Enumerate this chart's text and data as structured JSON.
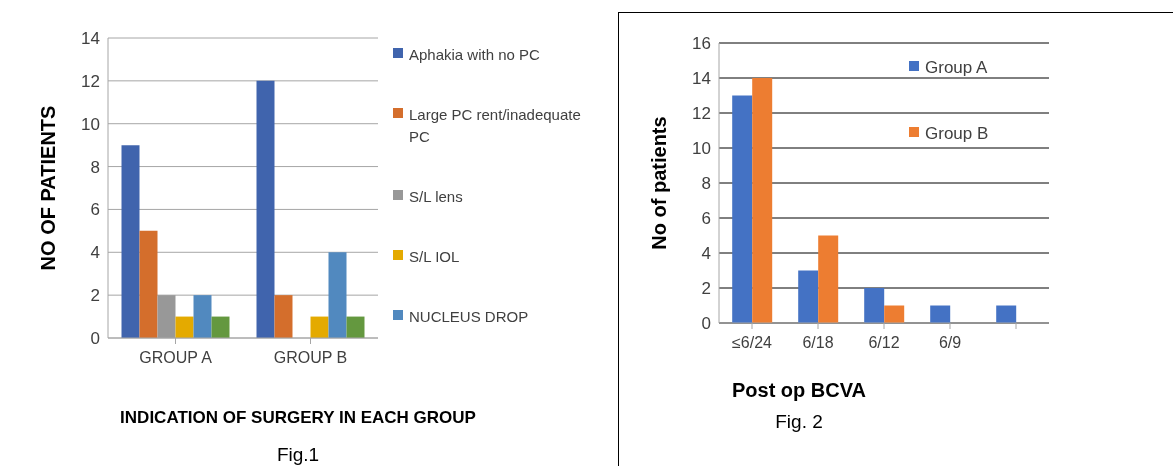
{
  "chart_data": [
    {
      "type": "bar",
      "title": "INDICATION OF SURGERY IN EACH GROUP",
      "ylabel": "NO OF  PATIENTS",
      "categories": [
        "GROUP A",
        "GROUP B"
      ],
      "series": [
        {
          "name": "Aphakia with no PC",
          "color": "#4064ad",
          "values": [
            9,
            12
          ]
        },
        {
          "name": "Large PC rent/inadequate PC",
          "color": "#d46e2c",
          "values": [
            5,
            2
          ]
        },
        {
          "name": "S/L lens",
          "color": "#989898",
          "values": [
            2,
            0
          ]
        },
        {
          "name": "S/L IOL",
          "color": "#e4aa00",
          "values": [
            1,
            1
          ]
        },
        {
          "name": "NUCLEUS DROP",
          "color": "#5189bf",
          "values": [
            2,
            4
          ]
        },
        {
          "color": "#64983f",
          "values": [
            1,
            1
          ]
        }
      ],
      "ylim": [
        0,
        14
      ],
      "yticks": [
        0,
        2,
        4,
        6,
        8,
        10,
        12,
        14
      ],
      "grid": "y",
      "legend": "right",
      "annotations": [
        "Fig.1"
      ]
    },
    {
      "type": "bar",
      "xlabel": "Post op BCVA",
      "ylabel": "No of patients",
      "categories": [
        "≤6/24",
        "6/18",
        "6/12",
        "6/9",
        null
      ],
      "series": [
        {
          "name": "Group A",
          "color": "#4472c4",
          "values": [
            13,
            3,
            2,
            1,
            1
          ]
        },
        {
          "name": "Group B",
          "color": "#ed7d31",
          "values": [
            14,
            5,
            1,
            null,
            null
          ]
        }
      ],
      "ylim": [
        0,
        16
      ],
      "yticks": [
        0,
        2,
        4,
        6,
        8,
        10,
        12,
        14,
        16
      ],
      "grid": "y",
      "legend": "top right",
      "annotations": [
        "Fig. 2"
      ]
    }
  ]
}
